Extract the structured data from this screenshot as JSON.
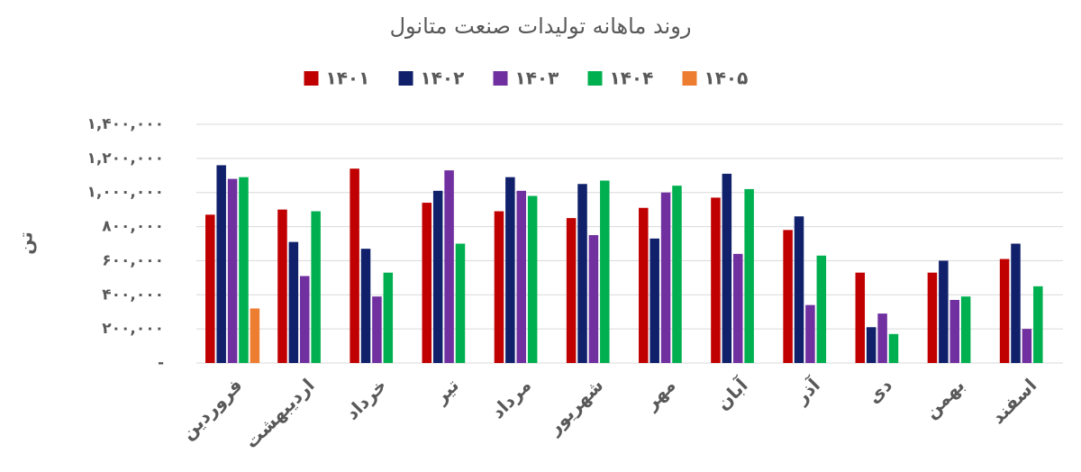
{
  "chart_data": {
    "type": "bar",
    "title": "روند ماهانه تولیدات صنعت متانول",
    "y_label": "تن",
    "categories": [
      "فروردین",
      "اردیبهشت",
      "خرداد",
      "تیر",
      "مرداد",
      "شهریور",
      "مهر",
      "آبان",
      "آذر",
      "دی",
      "بهمن",
      "اسفند"
    ],
    "series": [
      {
        "name": "۱۴۰۱",
        "color": "#c00000",
        "values": [
          870000,
          900000,
          1140000,
          940000,
          890000,
          850000,
          910000,
          970000,
          780000,
          530000,
          530000,
          610000
        ]
      },
      {
        "name": "۱۴۰۲",
        "color": "#10206b",
        "values": [
          1160000,
          710000,
          670000,
          1010000,
          1090000,
          1050000,
          730000,
          1110000,
          860000,
          210000,
          600000,
          700000
        ]
      },
      {
        "name": "۱۴۰۳",
        "color": "#7030a0",
        "values": [
          1080000,
          510000,
          390000,
          1130000,
          1010000,
          750000,
          1000000,
          640000,
          340000,
          290000,
          370000,
          200000
        ]
      },
      {
        "name": "۱۴۰۴",
        "color": "#00b050",
        "values": [
          1090000,
          890000,
          530000,
          700000,
          980000,
          1070000,
          1040000,
          1020000,
          630000,
          170000,
          390000,
          450000
        ]
      },
      {
        "name": "۱۴۰۵",
        "color": "#ed7d31",
        "values": [
          320000,
          null,
          null,
          null,
          null,
          null,
          null,
          null,
          null,
          null,
          null,
          null
        ]
      }
    ],
    "ylim": [
      0,
      1400000
    ],
    "yticks": [
      {
        "value": 0,
        "label": "-"
      },
      {
        "value": 200000,
        "label": "۲۰۰,۰۰۰"
      },
      {
        "value": 400000,
        "label": "۴۰۰,۰۰۰"
      },
      {
        "value": 600000,
        "label": "۶۰۰,۰۰۰"
      },
      {
        "value": 800000,
        "label": "۸۰۰,۰۰۰"
      },
      {
        "value": 1000000,
        "label": "۱,۰۰۰,۰۰۰"
      },
      {
        "value": 1200000,
        "label": "۱,۲۰۰,۰۰۰"
      },
      {
        "value": 1400000,
        "label": "۱,۴۰۰,۰۰۰"
      }
    ],
    "grid": true
  }
}
